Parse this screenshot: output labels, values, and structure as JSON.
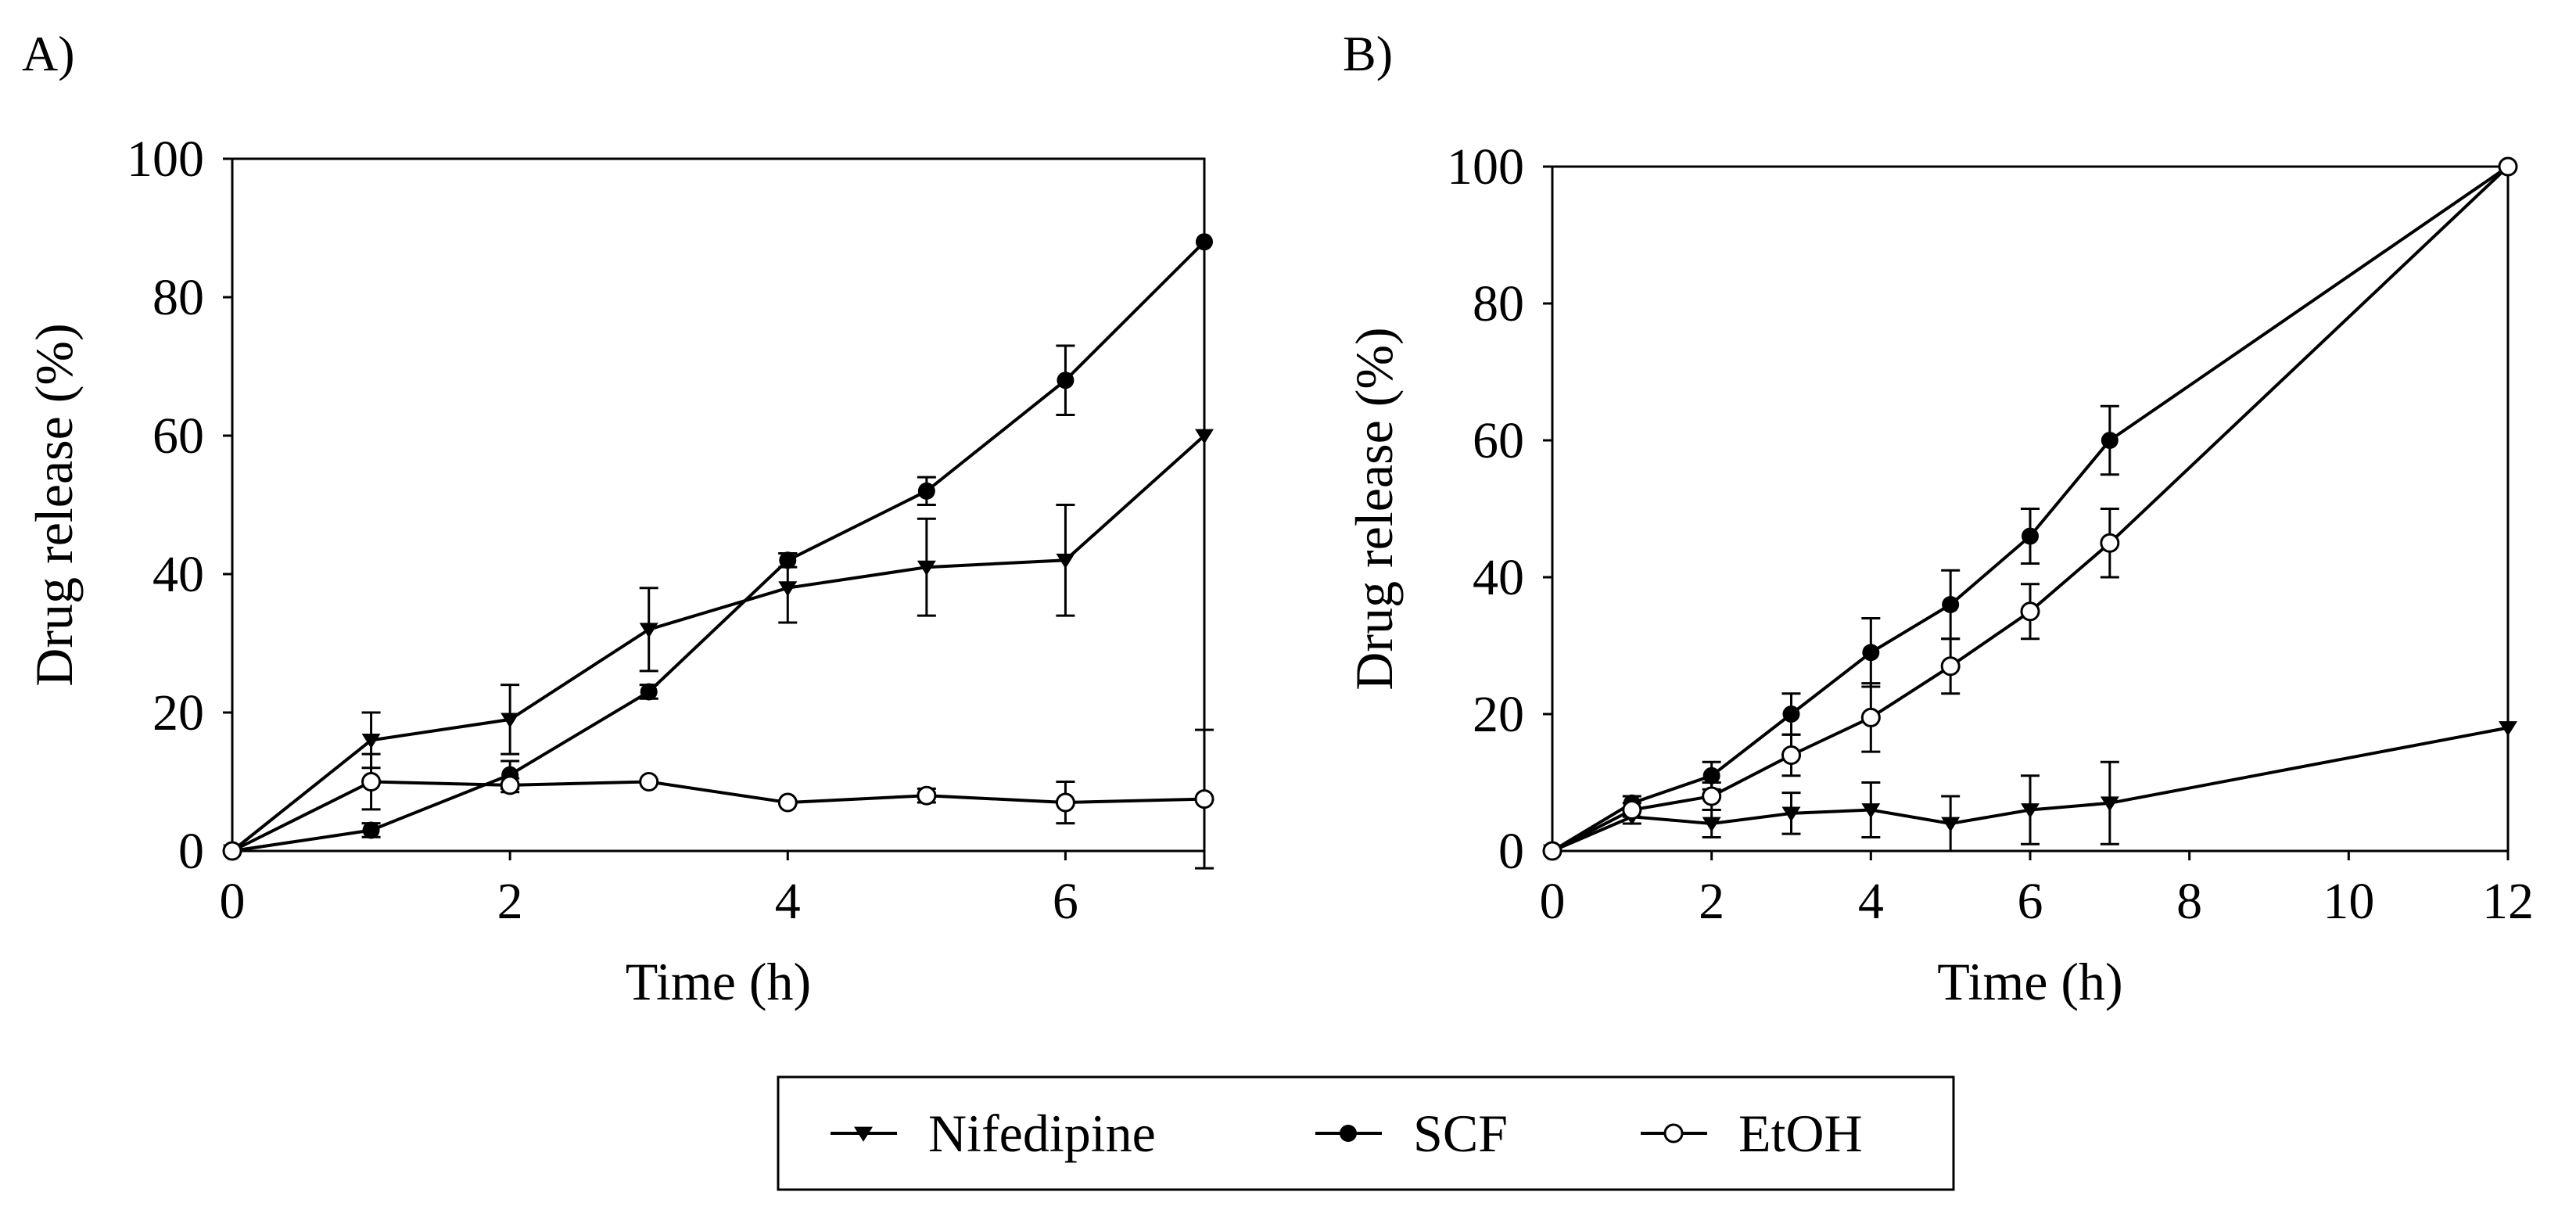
{
  "chart_data": [
    {
      "type": "line",
      "panel_label": "A)",
      "title": "",
      "xlabel": "Time (h)",
      "ylabel": "Drug release (%)",
      "xlim": [
        0,
        7
      ],
      "ylim": [
        0,
        100
      ],
      "xticks": [
        0,
        2,
        4,
        6
      ],
      "yticks": [
        0,
        20,
        40,
        60,
        80,
        100
      ],
      "grid": false,
      "series": [
        {
          "name": "Nifedipine",
          "marker": "triangle-down",
          "x": [
            0,
            1,
            2,
            3,
            4,
            5,
            6,
            7
          ],
          "y": [
            0,
            16,
            19,
            32,
            38,
            41,
            42,
            60
          ],
          "error": [
            0,
            4,
            5,
            6,
            5,
            7,
            8,
            0
          ]
        },
        {
          "name": "SCF",
          "marker": "filled-circle",
          "x": [
            0,
            1,
            2,
            3,
            4,
            5,
            6,
            7
          ],
          "y": [
            0,
            3,
            11,
            23,
            42,
            52,
            68,
            88
          ],
          "error": [
            0,
            1,
            2,
            1,
            1,
            2,
            5,
            0
          ]
        },
        {
          "name": "EtOH",
          "marker": "open-circle",
          "x": [
            0,
            1,
            2,
            3,
            4,
            5,
            6,
            7
          ],
          "y": [
            0,
            10,
            9.5,
            10,
            7,
            8,
            7,
            7.5
          ],
          "error": [
            0,
            4,
            1,
            0,
            0,
            1,
            3,
            10
          ]
        }
      ]
    },
    {
      "type": "line",
      "panel_label": "B)",
      "title": "",
      "xlabel": "Time (h)",
      "ylabel": "Drug release (%)",
      "xlim": [
        0,
        12
      ],
      "ylim": [
        0,
        100
      ],
      "xticks": [
        0,
        2,
        4,
        6,
        8,
        10,
        12
      ],
      "yticks": [
        0,
        20,
        40,
        60,
        80,
        100
      ],
      "grid": false,
      "series": [
        {
          "name": "Nifedipine",
          "marker": "triangle-down",
          "x": [
            0,
            1,
            2,
            3,
            4,
            5,
            6,
            7,
            12
          ],
          "y": [
            0,
            5,
            4,
            5.5,
            6,
            4,
            6,
            7,
            18
          ],
          "error": [
            0,
            1,
            2,
            3,
            4,
            4,
            5,
            6,
            0
          ]
        },
        {
          "name": "SCF",
          "marker": "filled-circle",
          "x": [
            0,
            1,
            2,
            3,
            4,
            5,
            6,
            7,
            12
          ],
          "y": [
            0,
            7,
            11,
            20,
            29,
            36,
            46,
            60,
            100
          ],
          "error": [
            0,
            1,
            2,
            3,
            5,
            5,
            4,
            5,
            0
          ]
        },
        {
          "name": "EtOH",
          "marker": "open-circle",
          "x": [
            0,
            1,
            2,
            3,
            4,
            5,
            6,
            7,
            12
          ],
          "y": [
            0,
            6,
            8,
            14,
            19.5,
            27,
            35,
            45,
            100
          ],
          "error": [
            0,
            1,
            2,
            3,
            5,
            4,
            4,
            5,
            0
          ]
        }
      ]
    }
  ],
  "legend": {
    "position": "bottom-center",
    "entries": [
      "Nifedipine",
      "SCF",
      "EtOH"
    ]
  }
}
